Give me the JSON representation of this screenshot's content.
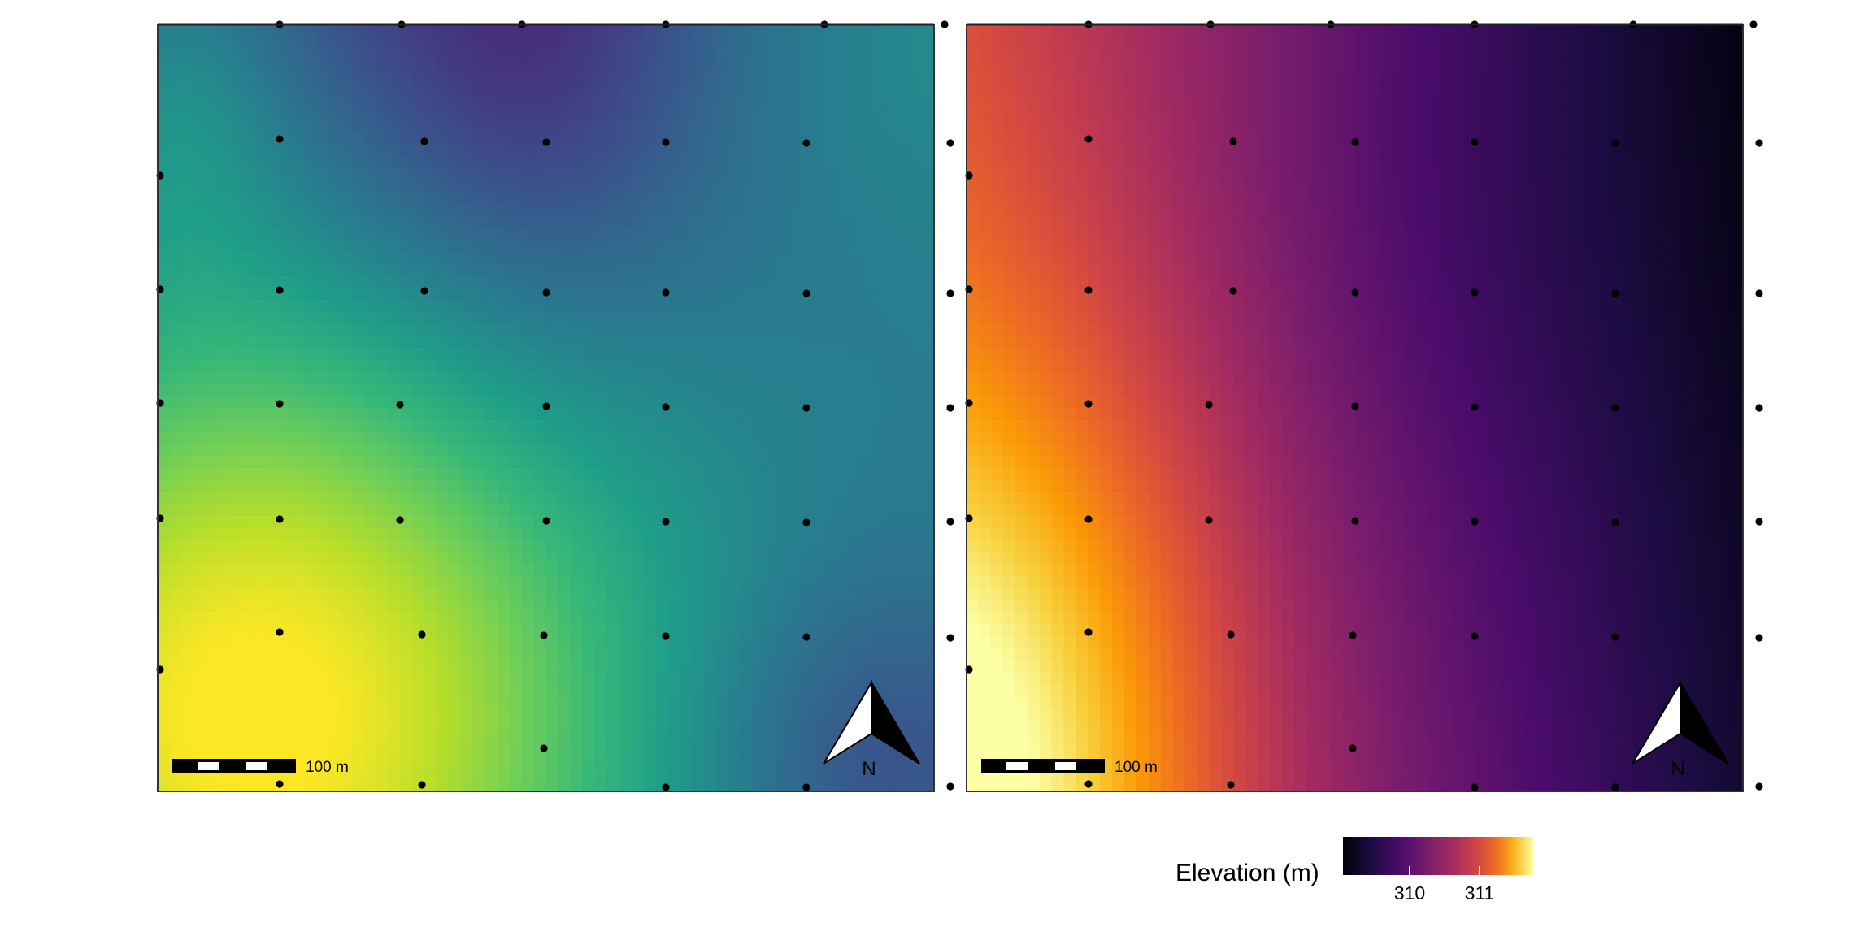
{
  "panels": [
    {
      "id": "left",
      "palette": "viridis",
      "scale_bar_label": "100 m",
      "north_label": "N"
    },
    {
      "id": "right",
      "palette": "inferno",
      "scale_bar_label": "100 m",
      "north_label": "N"
    }
  ],
  "legend": {
    "title": "Elevation (m)",
    "ticks": [
      "310",
      "311"
    ],
    "palette": "inferno"
  },
  "sample_points_visible": true,
  "colors": {
    "points": "#000000",
    "frame": "#333333",
    "background": "#ffffff"
  }
}
